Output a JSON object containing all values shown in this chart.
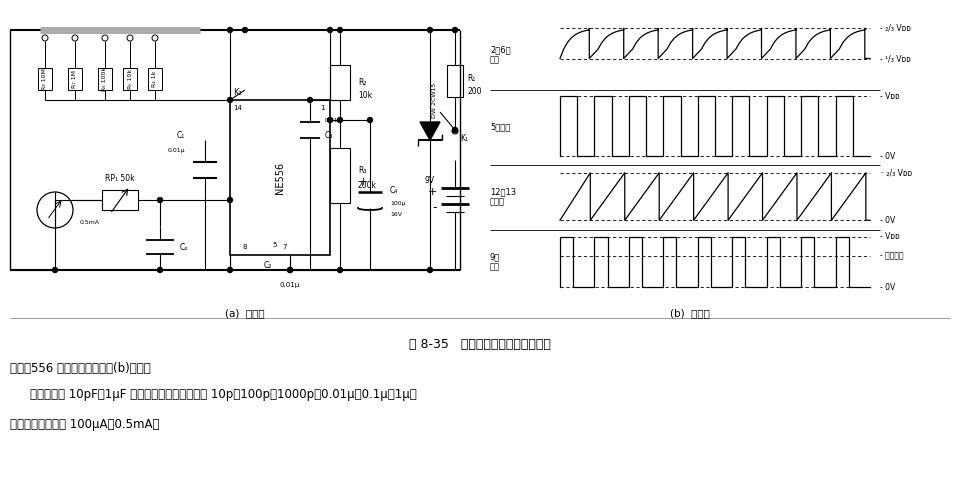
{
  "bg_color": "#ffffff",
  "fig_width": 9.6,
  "fig_height": 4.83,
  "dpi": 100,
  "caption": "图 8-35   简易电容测试仪电路（一）",
  "text_line1": "准用。556 各脚的波形图如图(b)所示。",
  "text_line2": "本电路可测 10pF～1μF 范围内的电容。量程分为 10p～100p～1000p～0.01μ～0.1μ～1μ，",
  "text_line3": "对应的电流量程为 100μA～0.5mA。",
  "label_a": "(a)  电路图",
  "label_b": "(b)  波形图"
}
